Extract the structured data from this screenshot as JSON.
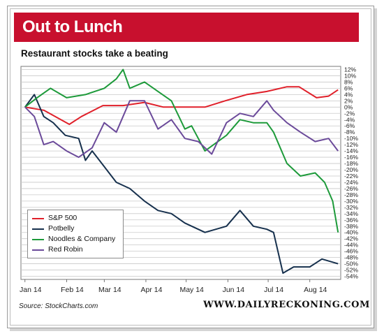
{
  "header": {
    "title": "Out to Lunch"
  },
  "chart_data": {
    "type": "line",
    "title": "Restaurant stocks take a beating",
    "xlabel": "",
    "ylabel": "",
    "x_tick_labels": [
      "Jan 14",
      "Feb 14",
      "Mar 14",
      "Apr 14",
      "May 14",
      "Jun 14",
      "Jul 14",
      "Aug 14"
    ],
    "y_tick_labels": [
      "12%",
      "10%",
      "8%",
      "6%",
      "4%",
      "2%",
      "0%",
      "-2%",
      "-4%",
      "-6%",
      "-8%",
      "-10%",
      "-12%",
      "-14%",
      "-16%",
      "-18%",
      "-20%",
      "-22%",
      "-24%",
      "-26%",
      "-28%",
      "-30%",
      "-32%",
      "-34%",
      "-36%",
      "-38%",
      "-40%",
      "-42%",
      "-44%",
      "-46%",
      "-48%",
      "-50%",
      "-52%",
      "-54%"
    ],
    "ylim": [
      -55,
      13
    ],
    "grid": true,
    "legend_position": "bottom-left",
    "series": [
      {
        "name": "S&P 500",
        "color": "#e0202a",
        "x": [
          "2014-01-01",
          "2014-01-15",
          "2014-02-03",
          "2014-02-12",
          "2014-02-28",
          "2014-03-15",
          "2014-03-31",
          "2014-04-14",
          "2014-04-30",
          "2014-05-15",
          "2014-05-30",
          "2014-06-15",
          "2014-06-30",
          "2014-07-15",
          "2014-07-24",
          "2014-08-06",
          "2014-08-15",
          "2014-08-22"
        ],
        "values": [
          0,
          -1,
          -5.5,
          -3,
          0.5,
          0.5,
          1.5,
          0,
          0,
          0,
          2,
          4,
          5,
          6.5,
          6.5,
          3,
          3.5,
          5.5
        ]
      },
      {
        "name": "Potbelly",
        "color": "#16304d",
        "x": [
          "2014-01-01",
          "2014-01-08",
          "2014-01-15",
          "2014-01-22",
          "2014-01-31",
          "2014-02-10",
          "2014-02-15",
          "2014-02-20",
          "2014-03-01",
          "2014-03-10",
          "2014-03-20",
          "2014-03-31",
          "2014-04-10",
          "2014-04-20",
          "2014-04-30",
          "2014-05-15",
          "2014-05-31",
          "2014-06-10",
          "2014-06-20",
          "2014-06-30",
          "2014-07-05",
          "2014-07-12",
          "2014-07-20",
          "2014-08-01",
          "2014-08-10",
          "2014-08-22"
        ],
        "values": [
          0,
          4,
          -3,
          -5,
          -9,
          -10,
          -17,
          -14,
          -19,
          -24,
          -26,
          -30,
          -33,
          -34,
          -37,
          -40,
          -38,
          -33,
          -38,
          -39,
          -40,
          -53,
          -51,
          -51,
          -48.5,
          -50
        ]
      },
      {
        "name": "Noodles & Company",
        "color": "#1d9a3a",
        "x": [
          "2014-01-01",
          "2014-01-10",
          "2014-01-20",
          "2014-02-01",
          "2014-02-15",
          "2014-03-01",
          "2014-03-10",
          "2014-03-15",
          "2014-03-20",
          "2014-03-31",
          "2014-04-10",
          "2014-04-20",
          "2014-04-30",
          "2014-05-05",
          "2014-05-15",
          "2014-05-31",
          "2014-06-10",
          "2014-06-20",
          "2014-06-30",
          "2014-07-05",
          "2014-07-15",
          "2014-07-25",
          "2014-08-05",
          "2014-08-12",
          "2014-08-18",
          "2014-08-22"
        ],
        "values": [
          0,
          3,
          6,
          3,
          4,
          6,
          9,
          12,
          6,
          8,
          5,
          2,
          -7,
          -6,
          -14,
          -9,
          -4,
          -5,
          -5,
          -8,
          -18,
          -22,
          -21,
          -24,
          -30,
          -40
        ]
      },
      {
        "name": "Red Robin",
        "color": "#6b4a9a",
        "x": [
          "2014-01-01",
          "2014-01-08",
          "2014-01-15",
          "2014-01-22",
          "2014-02-01",
          "2014-02-10",
          "2014-02-20",
          "2014-03-01",
          "2014-03-10",
          "2014-03-20",
          "2014-03-31",
          "2014-04-10",
          "2014-04-20",
          "2014-04-30",
          "2014-05-10",
          "2014-05-20",
          "2014-05-31",
          "2014-06-10",
          "2014-06-20",
          "2014-06-30",
          "2014-07-05",
          "2014-07-15",
          "2014-07-25",
          "2014-08-05",
          "2014-08-15",
          "2014-08-22"
        ],
        "values": [
          0,
          -3,
          -12,
          -11,
          -14,
          -16,
          -13,
          -5,
          -8,
          2,
          2,
          -7,
          -4,
          -10,
          -11,
          -15,
          -5,
          -2,
          -3,
          2,
          -1,
          -5,
          -8,
          -11,
          -10,
          -14
        ]
      }
    ]
  },
  "footer": {
    "source": "Source: StockCharts.com",
    "site": "WWW.DAILYRECKONING.COM"
  }
}
